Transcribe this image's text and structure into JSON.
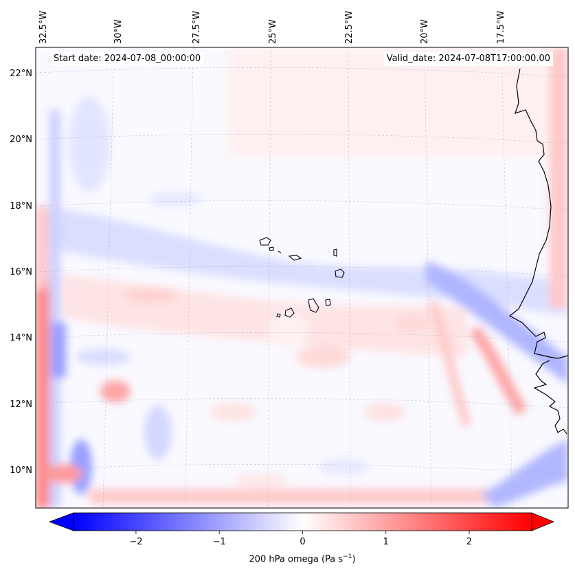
{
  "annotations": {
    "start_date": "Start date: 2024-07-08_00:00:00",
    "valid_date": "Valid_date: 2024-07-08T17:00:00.00"
  },
  "map": {
    "projection": "lambert-conformal",
    "lon_labels": [
      "32.5°W",
      "30°W",
      "27.5°W",
      "25°W",
      "22.5°W",
      "20°W",
      "17.5°W"
    ],
    "lat_labels": [
      "22°N",
      "20°N",
      "18°N",
      "16°N",
      "14°N",
      "12°N",
      "10°N"
    ],
    "gridlines": "dashed",
    "field": "200 hPa omega",
    "features": [
      "west-africa-coastline",
      "cape-verde-islands"
    ]
  },
  "colorbar": {
    "label_main": "200 hPa omega (Pa s",
    "label_exp": "−1",
    "label_close": ")",
    "ticks": [
      "−2",
      "−1",
      "0",
      "1",
      "2"
    ],
    "tick_values": [
      -2,
      -1,
      0,
      1,
      2
    ],
    "range": [
      -2.75,
      2.75
    ],
    "colormap": "bwr",
    "extend": "both",
    "color_low": "#0000ff",
    "color_mid": "#ffffff",
    "color_high": "#ff0000"
  }
}
